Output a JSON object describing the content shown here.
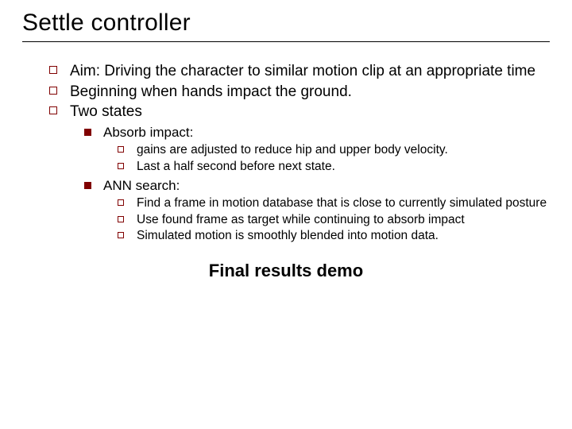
{
  "colors": {
    "bullet": "#800000",
    "text": "#000000",
    "background": "#ffffff",
    "rule": "#000000"
  },
  "typography": {
    "family": "Verdana",
    "title_size_pt": 30,
    "l1_size_pt": 19,
    "l2_size_pt": 17,
    "l3_size_pt": 15.5,
    "demo_size_pt": 22,
    "demo_weight": "bold"
  },
  "title": "Settle controller",
  "l1": {
    "aim": "Aim: Driving the character to similar motion clip at an appropriate time",
    "beginning": "Beginning when hands impact the ground.",
    "two_states": "Two states"
  },
  "l2": {
    "absorb": "Absorb impact:",
    "ann": "ANN search:"
  },
  "l3": {
    "absorb_a": "gains are adjusted to reduce hip and upper body velocity.",
    "absorb_b": "Last a half second before next state.",
    "ann_a": "Find a frame in motion database that is close to currently simulated posture",
    "ann_b": "Use found frame as target while continuing to absorb impact",
    "ann_c": "Simulated motion is smoothly blended into motion data."
  },
  "demo": "Final results demo"
}
